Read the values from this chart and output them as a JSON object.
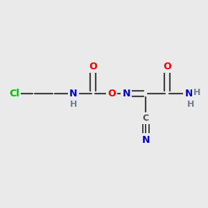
{
  "bg_color": "#eaeaea",
  "bond_color": "#404040",
  "atom_colors": {
    "Cl": "#00bb00",
    "O": "#ff0000",
    "N": "#0000cc",
    "C": "#505050",
    "H": "#708090"
  },
  "figsize": [
    3.0,
    3.0
  ],
  "dpi": 100,
  "xlim": [
    0,
    10
  ],
  "ylim": [
    0,
    10
  ]
}
